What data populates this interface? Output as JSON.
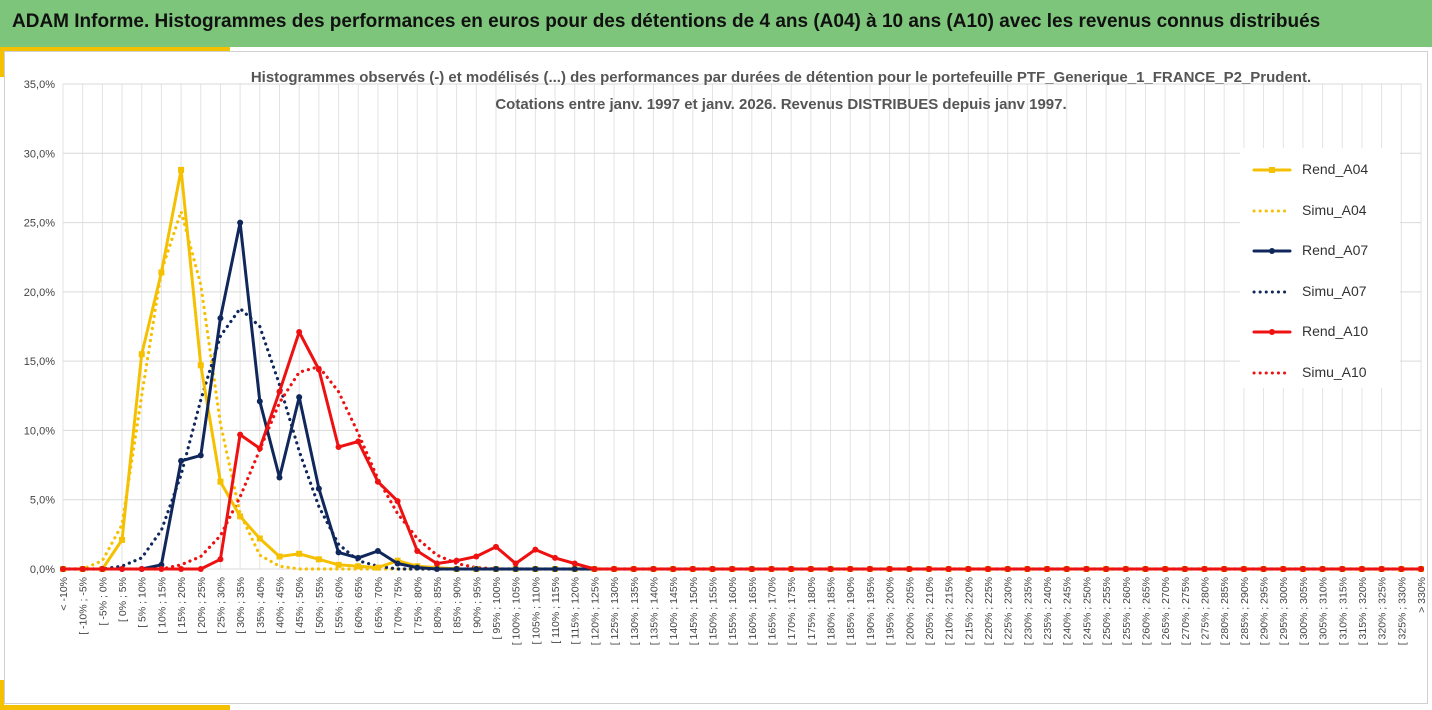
{
  "banner": {
    "title": "ADAM Informe. Histogrammes des performances en euros pour des détentions de 4 ans (A04) à 10 ans (A10) avec les revenus connus distribués"
  },
  "colors": {
    "banner_bg": "#7dc57a",
    "accent": "#f5c000",
    "a04": "#f5c000",
    "a07": "#10275c",
    "a10": "#ee1111"
  },
  "chart_data": {
    "type": "line",
    "title_line1": "Histogrammes observés (-) et modélisés (...) des performances par durées de détention pour le portefeuille PTF_Generique_1_FRANCE_P2_Prudent.",
    "title_line2": "Cotations entre janv. 1997 et janv. 2026. Revenus DISTRIBUES depuis janv 1997.",
    "ylim": [
      0,
      35
    ],
    "yticks": [
      "0,0%",
      "5,0%",
      "10,0%",
      "15,0%",
      "20,0%",
      "25,0%",
      "30,0%",
      "35,0%"
    ],
    "grid": true,
    "legend_position": "right",
    "categories": [
      "< -10%",
      "[ -10% ; -5%",
      "[ -5% ; 0%",
      "[ 0% ; 5%",
      "[ 5% ; 10%",
      "[ 10% ; 15%",
      "[ 15% ; 20%",
      "[ 20% ; 25%",
      "[ 25% ; 30%",
      "[ 30% ; 35%",
      "[ 35% ; 40%",
      "[ 40% ; 45%",
      "[ 45% ; 50%",
      "[ 50% ; 55%",
      "[ 55% ; 60%",
      "[ 60% ; 65%",
      "[ 65% ; 70%",
      "[ 70% ; 75%",
      "[ 75% ; 80%",
      "[ 80% ; 85%",
      "[ 85% ; 90%",
      "[ 90% ; 95%",
      "[ 95% ; 100%",
      "[ 100% ; 105%",
      "[ 105% ; 110%",
      "[ 110% ; 115%",
      "[ 115% ; 120%",
      "[ 120% ; 125%",
      "[ 125% ; 130%",
      "[ 130% ; 135%",
      "[ 135% ; 140%",
      "[ 140% ; 145%",
      "[ 145% ; 150%",
      "[ 150% ; 155%",
      "[ 155% ; 160%",
      "[ 160% ; 165%",
      "[ 165% ; 170%",
      "[ 170% ; 175%",
      "[ 175% ; 180%",
      "[ 180% ; 185%",
      "[ 185% ; 190%",
      "[ 190% ; 195%",
      "[ 195% ; 200%",
      "[ 200% ; 205%",
      "[ 205% ; 210%",
      "[ 210% ; 215%",
      "[ 215% ; 220%",
      "[ 220% ; 225%",
      "[ 225% ; 230%",
      "[ 230% ; 235%",
      "[ 235% ; 240%",
      "[ 240% ; 245%",
      "[ 245% ; 250%",
      "[ 250% ; 255%",
      "[ 255% ; 260%",
      "[ 260% ; 265%",
      "[ 265% ; 270%",
      "[ 270% ; 275%",
      "[ 275% ; 280%",
      "[ 280% ; 285%",
      "[ 285% ; 290%",
      "[ 290% ; 295%",
      "[ 295% ; 300%",
      "[ 300% ; 305%",
      "[ 305% ; 310%",
      "[ 310% ; 315%",
      "[ 315% ; 320%",
      "[ 320% ; 325%",
      "[ 325% ; 330%",
      "> 330%"
    ],
    "series": [
      {
        "name": "Rend_A04",
        "style": "solid",
        "color": "#f5c000",
        "values": [
          0,
          0,
          0,
          2.1,
          15.5,
          21.4,
          28.8,
          14.7,
          6.3,
          3.8,
          2.2,
          0.9,
          1.1,
          0.7,
          0.3,
          0.2,
          0.1,
          0.6,
          0.2,
          0.1,
          0,
          0,
          0,
          0,
          0,
          0,
          0,
          0,
          0,
          0,
          0,
          0,
          0,
          0,
          0,
          0,
          0,
          0,
          0,
          0,
          0,
          0,
          0,
          0,
          0,
          0,
          0,
          0,
          0,
          0,
          0,
          0,
          0,
          0,
          0,
          0,
          0,
          0,
          0,
          0,
          0,
          0,
          0,
          0,
          0,
          0,
          0,
          0,
          0,
          0
        ]
      },
      {
        "name": "Simu_A04",
        "style": "dotted",
        "color": "#f5c000",
        "values": [
          0,
          0,
          0.6,
          3.2,
          12.5,
          21.5,
          25.8,
          20.5,
          10.5,
          4.0,
          1.0,
          0.2,
          0,
          0,
          0,
          0,
          0,
          0,
          0,
          0,
          0,
          0,
          0,
          0,
          0,
          0,
          0,
          0,
          0,
          0,
          0,
          0,
          0,
          0,
          0,
          0,
          0,
          0,
          0,
          0,
          0,
          0,
          0,
          0,
          0,
          0,
          0,
          0,
          0,
          0,
          0,
          0,
          0,
          0,
          0,
          0,
          0,
          0,
          0,
          0,
          0,
          0,
          0,
          0,
          0,
          0,
          0,
          0,
          0,
          0
        ]
      },
      {
        "name": "Rend_A07",
        "style": "solid",
        "color": "#10275c",
        "values": [
          0,
          0,
          0,
          0,
          0,
          0.3,
          7.8,
          8.2,
          18.1,
          25.0,
          12.1,
          6.6,
          12.4,
          5.8,
          1.2,
          0.8,
          1.3,
          0.4,
          0.1,
          0,
          0,
          0,
          0,
          0,
          0,
          0,
          0,
          0,
          0,
          0,
          0,
          0,
          0,
          0,
          0,
          0,
          0,
          0,
          0,
          0,
          0,
          0,
          0,
          0,
          0,
          0,
          0,
          0,
          0,
          0,
          0,
          0,
          0,
          0,
          0,
          0,
          0,
          0,
          0,
          0,
          0,
          0,
          0,
          0,
          0,
          0,
          0,
          0,
          0,
          0
        ]
      },
      {
        "name": "Simu_A07",
        "style": "dotted",
        "color": "#10275c",
        "values": [
          0,
          0,
          0,
          0.2,
          0.8,
          2.8,
          6.8,
          12.2,
          16.8,
          18.8,
          17.5,
          13.3,
          8.5,
          4.5,
          1.8,
          0.6,
          0.2,
          0,
          0,
          0,
          0,
          0,
          0,
          0,
          0,
          0,
          0,
          0,
          0,
          0,
          0,
          0,
          0,
          0,
          0,
          0,
          0,
          0,
          0,
          0,
          0,
          0,
          0,
          0,
          0,
          0,
          0,
          0,
          0,
          0,
          0,
          0,
          0,
          0,
          0,
          0,
          0,
          0,
          0,
          0,
          0,
          0,
          0,
          0,
          0,
          0,
          0,
          0,
          0,
          0
        ]
      },
      {
        "name": "Rend_A10",
        "style": "solid",
        "color": "#ee1111",
        "values": [
          0,
          0,
          0,
          0,
          0,
          0,
          0,
          0,
          0.7,
          9.7,
          8.7,
          12.8,
          17.1,
          14.4,
          8.8,
          9.2,
          6.3,
          4.9,
          1.3,
          0.4,
          0.6,
          0.9,
          1.6,
          0.4,
          1.4,
          0.8,
          0.4,
          0,
          0,
          0,
          0,
          0,
          0,
          0,
          0,
          0,
          0,
          0,
          0,
          0,
          0,
          0,
          0,
          0,
          0,
          0,
          0,
          0,
          0,
          0,
          0,
          0,
          0,
          0,
          0,
          0,
          0,
          0,
          0,
          0,
          0,
          0,
          0,
          0,
          0,
          0,
          0,
          0,
          0,
          0
        ]
      },
      {
        "name": "Simu_A10",
        "style": "dotted",
        "color": "#ee1111",
        "values": [
          0,
          0,
          0,
          0,
          0,
          0,
          0.3,
          0.9,
          2.4,
          5.2,
          8.6,
          12.0,
          14.2,
          14.6,
          12.8,
          9.8,
          6.5,
          4.0,
          2.2,
          1.0,
          0.4,
          0.1,
          0,
          0,
          0,
          0,
          0,
          0,
          0,
          0,
          0,
          0,
          0,
          0,
          0,
          0,
          0,
          0,
          0,
          0,
          0,
          0,
          0,
          0,
          0,
          0,
          0,
          0,
          0,
          0,
          0,
          0,
          0,
          0,
          0,
          0,
          0,
          0,
          0,
          0,
          0,
          0,
          0,
          0,
          0,
          0,
          0,
          0,
          0,
          0
        ]
      }
    ]
  }
}
